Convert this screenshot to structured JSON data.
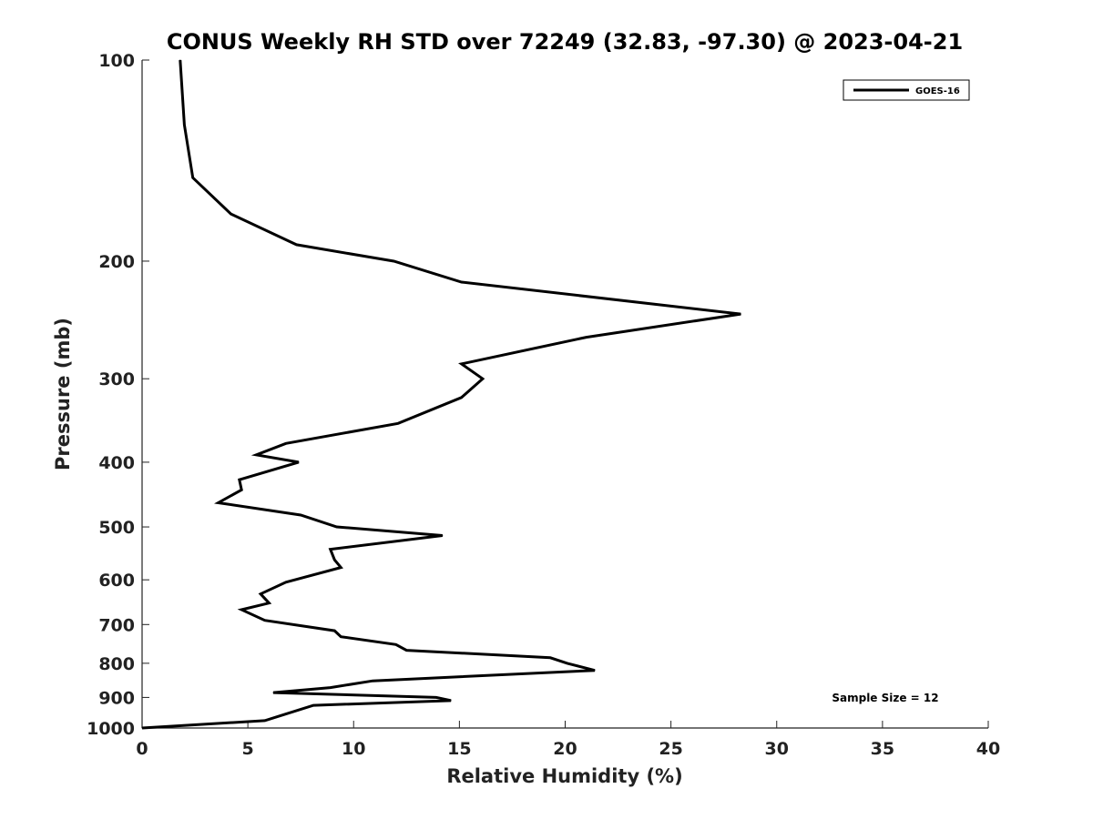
{
  "chart_data": {
    "type": "line",
    "title": "CONUS Weekly RH STD over 72249 (32.83, -97.30) @ 2023-04-21",
    "xlabel": "Relative Humidity (%)",
    "ylabel": "Pressure (mb)",
    "xlim": [
      0,
      40
    ],
    "ylim": [
      1000,
      100
    ],
    "y_scale": "log",
    "x_ticks": [
      "0",
      "5",
      "10",
      "15",
      "20",
      "25",
      "30",
      "35",
      "40"
    ],
    "y_ticks": [
      "100",
      "200",
      "300",
      "400",
      "500",
      "600",
      "700",
      "800",
      "900",
      "1000"
    ],
    "grid": false,
    "legend_position": "top-right",
    "series": [
      {
        "name": "GOES-16",
        "color": "#000000",
        "points": [
          [
            1.8,
            100
          ],
          [
            2.0,
            125
          ],
          [
            2.4,
            150
          ],
          [
            4.2,
            170
          ],
          [
            7.3,
            189
          ],
          [
            11.9,
            200
          ],
          [
            15.1,
            215
          ],
          [
            28.3,
            240
          ],
          [
            21.0,
            260
          ],
          [
            15.1,
            285
          ],
          [
            16.1,
            300
          ],
          [
            15.1,
            320
          ],
          [
            12.1,
            350
          ],
          [
            6.8,
            375
          ],
          [
            5.4,
            390
          ],
          [
            7.4,
            400
          ],
          [
            4.6,
            425
          ],
          [
            4.7,
            440
          ],
          [
            3.6,
            460
          ],
          [
            7.5,
            480
          ],
          [
            9.2,
            500
          ],
          [
            14.2,
            515
          ],
          [
            8.9,
            540
          ],
          [
            9.1,
            560
          ],
          [
            9.4,
            575
          ],
          [
            6.8,
            605
          ],
          [
            5.6,
            630
          ],
          [
            6.0,
            650
          ],
          [
            4.7,
            665
          ],
          [
            5.8,
            690
          ],
          [
            9.1,
            715
          ],
          [
            9.4,
            730
          ],
          [
            12.0,
            750
          ],
          [
            12.5,
            765
          ],
          [
            19.3,
            785
          ],
          [
            20.1,
            800
          ],
          [
            21.4,
            820
          ],
          [
            10.9,
            850
          ],
          [
            8.9,
            870
          ],
          [
            6.2,
            885
          ],
          [
            13.9,
            900
          ],
          [
            14.6,
            910
          ],
          [
            8.1,
            925
          ],
          [
            6.7,
            955
          ],
          [
            5.8,
            975
          ],
          [
            0.0,
            1000
          ]
        ]
      }
    ],
    "annotations": [
      "Sample Size = 12"
    ]
  }
}
